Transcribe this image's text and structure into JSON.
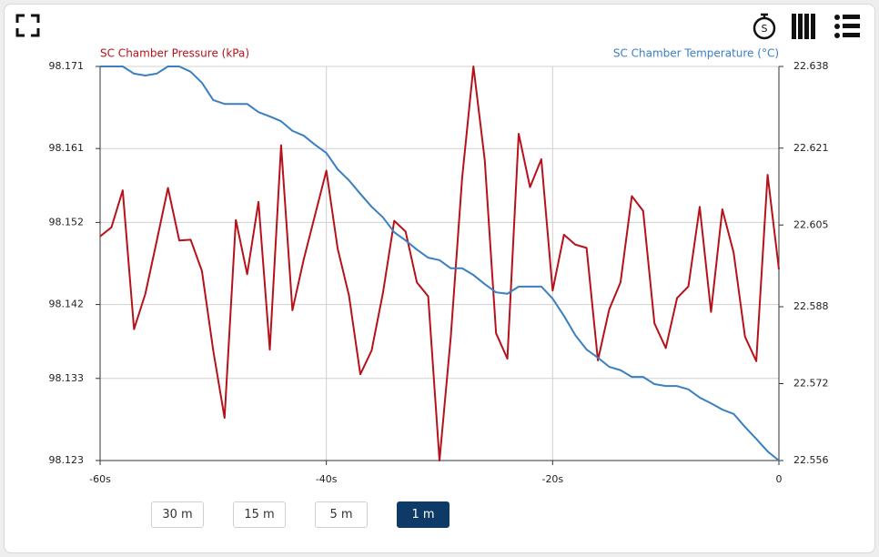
{
  "chart_data": {
    "type": "line",
    "x": [
      -60,
      -59,
      -58,
      -57,
      -56,
      -55,
      -54,
      -53,
      -52,
      -51,
      -50,
      -49,
      -48,
      -47,
      -46,
      -45,
      -44,
      -43,
      -42,
      -41,
      -40,
      -39,
      -38,
      -37,
      -36,
      -35,
      -34,
      -33,
      -32,
      -31,
      -30,
      -29,
      -28,
      -27,
      -26,
      -25,
      -24,
      -23,
      -22,
      -21,
      -20,
      -19,
      -18,
      -17,
      -16,
      -15,
      -14,
      -13,
      -12,
      -11,
      -10,
      -9,
      -8,
      -7,
      -6,
      -5,
      -4,
      -3,
      -2,
      -1,
      0
    ],
    "series": [
      {
        "name": "SC Chamber Pressure (kPa)",
        "color": "#b5121b",
        "axis": "y",
        "values": [
          98.1503,
          98.1514,
          98.1559,
          98.139,
          98.1433,
          98.1497,
          98.1562,
          98.1498,
          98.1499,
          98.1461,
          98.1364,
          98.1282,
          98.1523,
          98.1457,
          98.1545,
          98.1365,
          98.1614,
          98.1413,
          98.1475,
          98.1529,
          98.1583,
          98.1488,
          98.1431,
          98.1335,
          98.1364,
          98.1434,
          98.1522,
          98.1509,
          98.1447,
          98.143,
          98.123,
          98.1381,
          98.1574,
          98.171,
          98.1596,
          98.1385,
          98.1354,
          98.1628,
          98.1563,
          98.1597,
          98.1437,
          98.1505,
          98.1493,
          98.1489,
          98.1352,
          98.1414,
          98.1447,
          98.1552,
          98.1534,
          98.1397,
          98.1367,
          98.1428,
          98.1442,
          98.1539,
          98.1411,
          98.1536,
          98.1483,
          98.1381,
          98.1351,
          98.1578,
          98.1463
        ]
      },
      {
        "name": "SC Chamber Temperature (°C)",
        "color": "#3a7fc1",
        "axis": "y2",
        "values": [
          22.638,
          22.638,
          22.638,
          22.6365,
          22.6361,
          22.6365,
          22.638,
          22.638,
          22.6369,
          22.6346,
          22.631,
          22.6302,
          22.6302,
          22.6302,
          22.6285,
          22.6276,
          22.6266,
          22.6246,
          22.6236,
          22.6217,
          22.62,
          22.6166,
          22.6143,
          22.6115,
          22.6088,
          22.6066,
          22.6035,
          22.6018,
          22.5999,
          22.5982,
          22.5977,
          22.596,
          22.596,
          22.5946,
          22.5927,
          22.591,
          22.5907,
          22.5922,
          22.5922,
          22.5922,
          22.5897,
          22.5861,
          22.5821,
          22.5791,
          22.5774,
          22.5755,
          22.5748,
          22.5734,
          22.5734,
          22.5719,
          22.5715,
          22.5715,
          22.5708,
          22.5691,
          22.5679,
          22.5666,
          22.5657,
          22.563,
          22.5605,
          22.5579,
          22.556
        ]
      }
    ],
    "xlim": [
      -60,
      0
    ],
    "xticks": [
      {
        "value": -60,
        "label": "-60s"
      },
      {
        "value": -40,
        "label": "-40s"
      },
      {
        "value": -20,
        "label": "-20s"
      },
      0
    ],
    "ylim": [
      98.123,
      98.171
    ],
    "yticks": [
      98.123,
      98.133,
      98.142,
      98.152,
      98.161,
      98.171
    ],
    "y2lim": [
      22.556,
      22.638
    ],
    "y2ticks": [
      22.556,
      22.572,
      22.588,
      22.605,
      22.621,
      22.638
    ],
    "grid": true
  },
  "range_buttons": [
    "30 m",
    "15 m",
    "5 m",
    "1 m"
  ],
  "selected_range": 3
}
